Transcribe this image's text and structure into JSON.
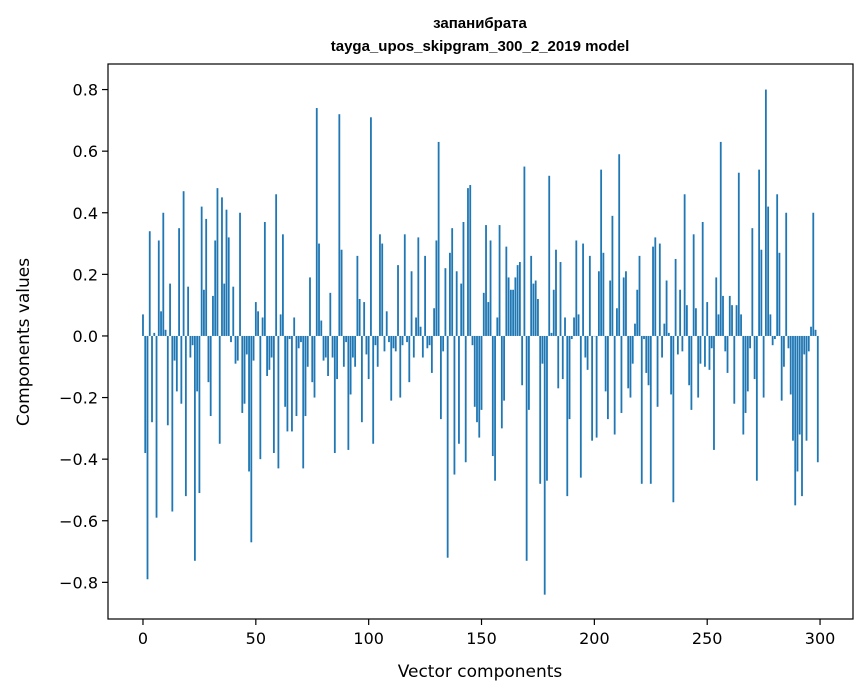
{
  "chart_data": {
    "type": "bar",
    "title": [
      "запанибрата",
      "tayga_upos_skipgram_300_2_2019 model"
    ],
    "xlabel": "Vector components",
    "ylabel": "Components values",
    "xlim": [
      -15.5,
      314.6
    ],
    "ylim": [
      -0.919,
      0.883
    ],
    "xticks": [
      0,
      50,
      100,
      150,
      200,
      250,
      300
    ],
    "xtick_labels": [
      "0",
      "50",
      "100",
      "150",
      "200",
      "250",
      "300"
    ],
    "yticks": [
      -0.8,
      -0.6,
      -0.4,
      -0.2,
      0.0,
      0.2,
      0.4,
      0.6,
      0.8
    ],
    "ytick_labels": [
      "−0.8",
      "−0.6",
      "−0.4",
      "−0.2",
      "0.0",
      "0.2",
      "0.4",
      "0.6",
      "0.8"
    ],
    "grid": false,
    "color": "#1f77b4",
    "values": [
      0.07,
      -0.38,
      -0.79,
      0.34,
      -0.28,
      0.01,
      -0.59,
      0.31,
      0.08,
      0.4,
      0.02,
      -0.29,
      0.17,
      -0.57,
      -0.08,
      -0.18,
      0.35,
      -0.22,
      0.47,
      -0.52,
      0.16,
      -0.07,
      -0.03,
      -0.73,
      -0.18,
      -0.51,
      0.42,
      0.15,
      0.38,
      -0.15,
      -0.26,
      0.13,
      0.31,
      0.48,
      -0.35,
      0.45,
      0.17,
      0.41,
      0.32,
      -0.02,
      0.16,
      -0.09,
      -0.08,
      0.4,
      -0.25,
      -0.22,
      -0.06,
      -0.44,
      -0.67,
      -0.08,
      0.11,
      0.08,
      -0.4,
      0.06,
      0.37,
      -0.13,
      -0.11,
      -0.07,
      -0.38,
      0.46,
      -0.43,
      0.07,
      0.33,
      -0.23,
      -0.31,
      -0.01,
      -0.31,
      0.06,
      -0.26,
      -0.04,
      -0.02,
      -0.43,
      -0.26,
      -0.1,
      0.19,
      -0.15,
      -0.2,
      0.74,
      0.3,
      0.05,
      -0.08,
      -0.07,
      -0.13,
      0.14,
      -0.07,
      -0.38,
      -0.14,
      0.72,
      0.28,
      -0.1,
      -0.02,
      -0.37,
      -0.19,
      -0.07,
      -0.1,
      0.26,
      0.12,
      -0.28,
      0.11,
      -0.06,
      -0.14,
      0.71,
      -0.35,
      -0.03,
      -0.1,
      0.33,
      0.3,
      -0.05,
      0.08,
      -0.02,
      -0.21,
      -0.04,
      -0.05,
      0.23,
      -0.2,
      -0.03,
      0.33,
      -0.02,
      -0.15,
      0.21,
      -0.07,
      0.06,
      0.32,
      0.03,
      -0.07,
      0.26,
      -0.04,
      -0.03,
      -0.12,
      0.09,
      0.31,
      0.63,
      -0.27,
      -0.05,
      0.22,
      -0.72,
      0.27,
      0.35,
      -0.45,
      0.21,
      -0.35,
      0.17,
      0.37,
      -0.41,
      0.48,
      0.49,
      -0.03,
      -0.23,
      -0.28,
      -0.33,
      -0.24,
      0.14,
      0.36,
      0.11,
      0.31,
      -0.39,
      -0.47,
      0.06,
      0.36,
      -0.3,
      -0.21,
      0.29,
      0.19,
      0.15,
      0.15,
      0.19,
      0.23,
      0.24,
      -0.16,
      0.55,
      -0.73,
      -0.24,
      0.26,
      0.17,
      0.18,
      0.12,
      -0.48,
      -0.09,
      -0.84,
      -0.47,
      0.52,
      0.01,
      0.15,
      0.28,
      -0.17,
      0.24,
      -0.14,
      0.06,
      -0.52,
      -0.27,
      -0.01,
      0.06,
      0.31,
      0.07,
      -0.46,
      0.3,
      -0.07,
      -0.11,
      0.26,
      -0.34,
      0.0,
      -0.33,
      0.21,
      0.54,
      0.27,
      -0.18,
      -0.27,
      0.18,
      0.39,
      -0.32,
      0.09,
      0.59,
      -0.25,
      0.19,
      0.21,
      -0.17,
      -0.2,
      -0.09,
      0.04,
      0.15,
      0.26,
      -0.48,
      -0.01,
      -0.12,
      -0.16,
      -0.48,
      0.29,
      0.32,
      -0.23,
      0.3,
      -0.07,
      0.04,
      0.18,
      0.01,
      -0.19,
      -0.54,
      0.25,
      -0.06,
      0.15,
      -0.05,
      0.46,
      0.1,
      -0.16,
      -0.24,
      0.33,
      0.09,
      -0.2,
      -0.09,
      0.37,
      -0.1,
      0.11,
      -0.11,
      -0.04,
      -0.37,
      0.19,
      0.07,
      0.63,
      0.13,
      -0.05,
      -0.12,
      0.13,
      0.1,
      -0.22,
      0.1,
      0.53,
      0.07,
      -0.32,
      -0.25,
      -0.18,
      -0.04,
      0.35,
      -0.14,
      -0.47,
      0.54,
      0.28,
      -0.2,
      0.8,
      0.42,
      0.07,
      -0.03,
      -0.01,
      0.46,
      0.27,
      -0.21,
      -0.1,
      0.4,
      -0.04,
      -0.19,
      -0.34,
      -0.55,
      -0.44,
      -0.32,
      -0.52,
      -0.06,
      -0.34,
      -0.05,
      0.03,
      0.4,
      0.02,
      -0.41
    ]
  }
}
